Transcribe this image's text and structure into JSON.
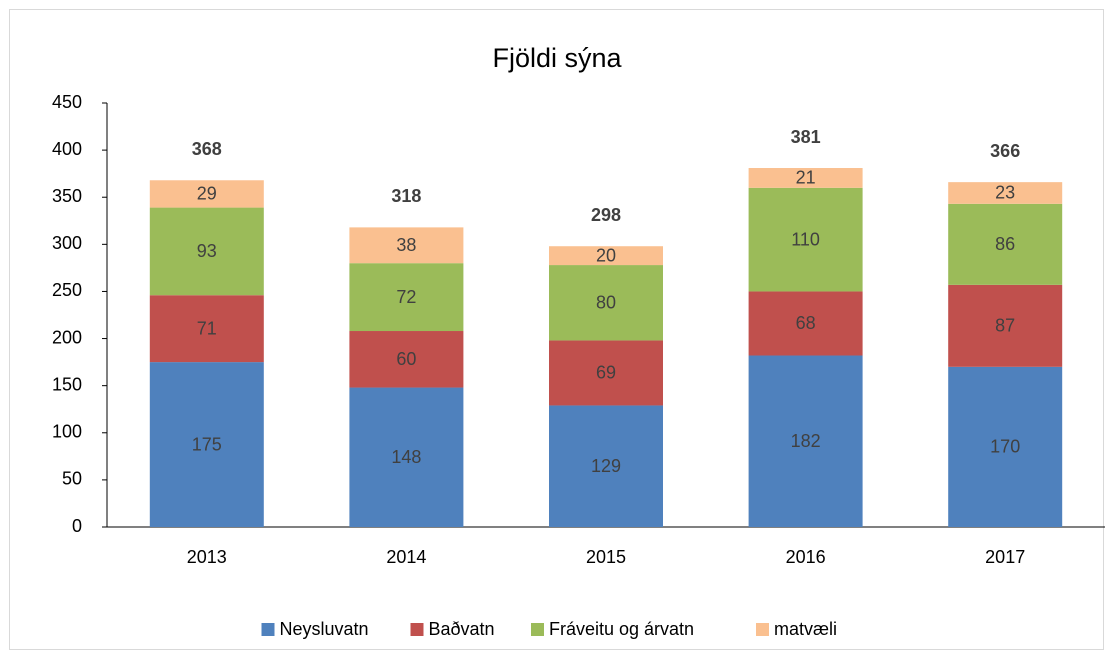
{
  "chart_data": {
    "type": "stacked_bar",
    "title": "Fjöldi sýna",
    "categories": [
      "2013",
      "2014",
      "2015",
      "2016",
      "2017"
    ],
    "series": [
      {
        "name": "Neysluvatn",
        "color": "#4f81bd",
        "values": [
          175,
          148,
          129,
          182,
          170
        ]
      },
      {
        "name": "Baðvatn",
        "color": "#c0504d",
        "values": [
          71,
          60,
          69,
          68,
          87
        ]
      },
      {
        "name": "Fráveitu og árvatn",
        "color": "#9bbb59",
        "values": [
          93,
          72,
          80,
          110,
          86
        ]
      },
      {
        "name": "matvæli",
        "color": "#fac090",
        "values": [
          29,
          38,
          20,
          21,
          23
        ]
      }
    ],
    "totals": [
      368,
      318,
      298,
      381,
      366
    ],
    "ylim": [
      0,
      450
    ],
    "yticks": [
      0,
      50,
      100,
      150,
      200,
      250,
      300,
      350,
      400,
      450
    ],
    "grid": false,
    "legend": "bottom"
  }
}
